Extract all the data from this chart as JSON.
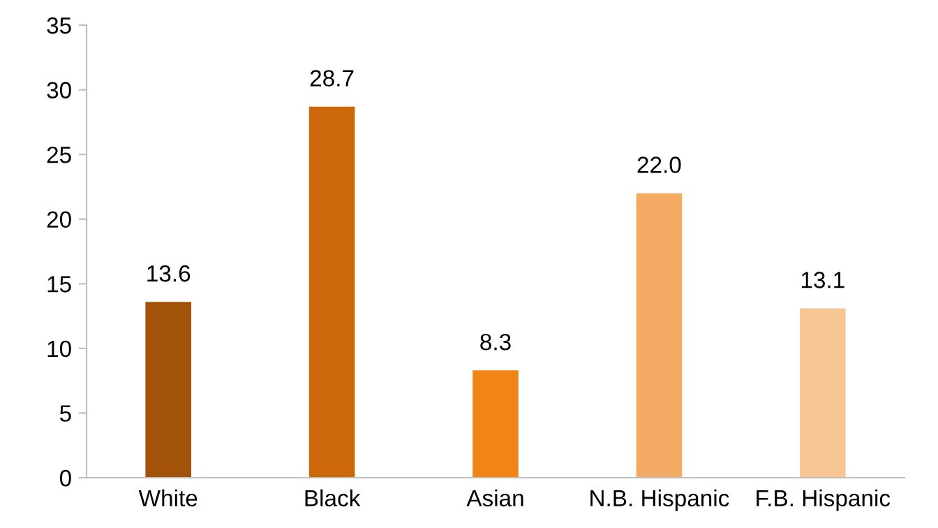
{
  "chart_data": {
    "type": "bar",
    "categories": [
      "White",
      "Black",
      "Asian",
      "N.B. Hispanic",
      "F.B. Hispanic"
    ],
    "values": [
      13.6,
      28.7,
      8.3,
      22.0,
      13.1
    ],
    "colors": [
      "#a3520a",
      "#cc680a",
      "#f08414",
      "#f3ab64",
      "#f6c792"
    ],
    "value_labels": [
      "13.6",
      "28.7",
      "8.3",
      "22.0",
      "13.1"
    ],
    "ylim": [
      0,
      35
    ],
    "yticks": [
      0,
      5,
      10,
      15,
      20,
      25,
      30,
      35
    ],
    "grid": false,
    "legend": false
  }
}
